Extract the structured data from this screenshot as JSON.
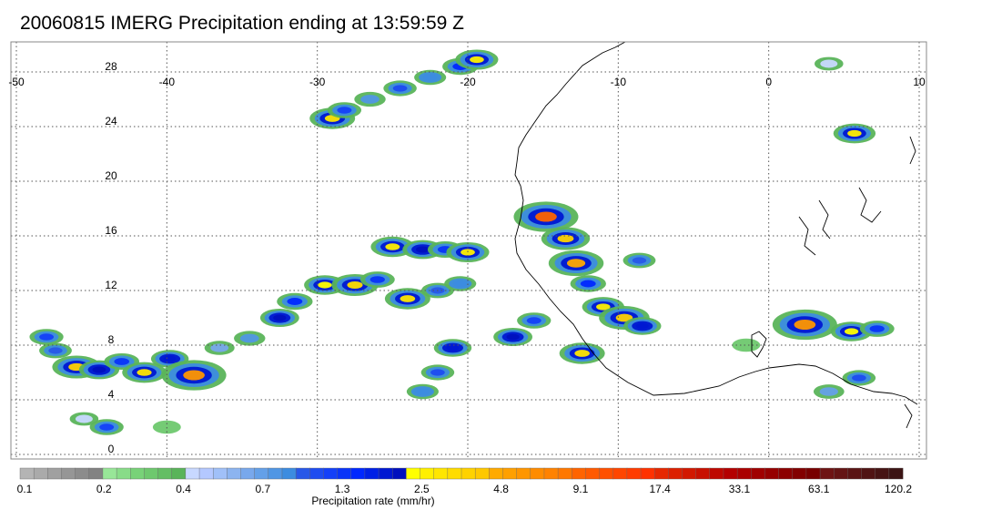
{
  "title": "20060815 IMERG Precipitation ending at 13:59:59 Z",
  "map": {
    "lon_range": [
      -50,
      10
    ],
    "lat_range": [
      -1,
      30
    ],
    "lon_ticks": [
      "-50",
      "-40",
      "-30",
      "-20",
      "-10",
      "0",
      "10"
    ],
    "lon_tick_values": [
      -50,
      -40,
      -30,
      -20,
      -10,
      0,
      10
    ],
    "lat_ticks": [
      "28",
      "24",
      "20",
      "16",
      "12",
      "8",
      "4",
      "0"
    ],
    "lat_tick_values": [
      28,
      24,
      20,
      16,
      12,
      8,
      4,
      0
    ],
    "grid": "dotted",
    "coastline_color": "#000000"
  },
  "colorbar": {
    "label": "Precipitation rate (mm/hr)",
    "tick_labels": [
      "0.1",
      "0.2",
      "0.4",
      "0.7",
      "1.3",
      "2.5",
      "4.8",
      "9.1",
      "17.4",
      "33.1",
      "63.1",
      "120.2"
    ],
    "colors": [
      "#b4b4b4",
      "#aaaaaa",
      "#a0a0a0",
      "#969696",
      "#8c8c8c",
      "#828282",
      "#98e698",
      "#88dc88",
      "#78d278",
      "#6ec86e",
      "#64be64",
      "#5ab45a",
      "#c8d8ff",
      "#b4c8ff",
      "#a0c0f8",
      "#8cb4f0",
      "#78a8ec",
      "#64a0e8",
      "#5096e4",
      "#3c8ce0",
      "#2858e8",
      "#1e4cf0",
      "#1440f8",
      "#0a34f8",
      "#0028ff",
      "#0020e6",
      "#0018d2",
      "#0010be",
      "#ffff00",
      "#fff000",
      "#ffe600",
      "#ffdc00",
      "#ffd200",
      "#ffc800",
      "#ffaa00",
      "#ffa000",
      "#ff9600",
      "#ff8c00",
      "#ff8200",
      "#ff7800",
      "#ff6400",
      "#ff5a00",
      "#ff5000",
      "#ff4600",
      "#ff3c00",
      "#ff3200",
      "#e62800",
      "#dc2000",
      "#d21800",
      "#c81000",
      "#be0800",
      "#b40000",
      "#aa0000",
      "#a00000",
      "#960000",
      "#8c0000",
      "#820000",
      "#780000",
      "#6e1414",
      "#641414",
      "#5a1414",
      "#501414",
      "#461414",
      "#3c1414"
    ]
  },
  "precip_cells": [
    {
      "lon": -29.0,
      "lat": 24.6,
      "rate": 3.0
    },
    {
      "lon": -28.2,
      "lat": 25.2,
      "rate": 1.2
    },
    {
      "lon": -26.5,
      "lat": 26.0,
      "rate": 0.8
    },
    {
      "lon": -24.5,
      "lat": 26.8,
      "rate": 1.1
    },
    {
      "lon": -22.5,
      "lat": 27.6,
      "rate": 0.9
    },
    {
      "lon": -20.5,
      "lat": 28.4,
      "rate": 1.5
    },
    {
      "lon": -19.4,
      "lat": 28.9,
      "rate": 2.6
    },
    {
      "lon": -48.0,
      "lat": 8.6,
      "rate": 1.2
    },
    {
      "lon": -47.4,
      "lat": 7.6,
      "rate": 1.0
    },
    {
      "lon": -46.0,
      "lat": 6.4,
      "rate": 3.5
    },
    {
      "lon": -44.5,
      "lat": 6.2,
      "rate": 2.2
    },
    {
      "lon": -43.0,
      "lat": 6.8,
      "rate": 1.4
    },
    {
      "lon": -41.5,
      "lat": 6.0,
      "rate": 2.8
    },
    {
      "lon": -39.8,
      "lat": 7.0,
      "rate": 1.8
    },
    {
      "lon": -38.2,
      "lat": 5.8,
      "rate": 6.0
    },
    {
      "lon": -36.5,
      "lat": 7.8,
      "rate": 0.6
    },
    {
      "lon": -34.5,
      "lat": 8.5,
      "rate": 0.8
    },
    {
      "lon": -32.5,
      "lat": 10.0,
      "rate": 2.0
    },
    {
      "lon": -31.5,
      "lat": 11.2,
      "rate": 1.5
    },
    {
      "lon": -29.5,
      "lat": 12.4,
      "rate": 2.4
    },
    {
      "lon": -27.5,
      "lat": 12.4,
      "rate": 3.2
    },
    {
      "lon": -26.0,
      "lat": 12.8,
      "rate": 1.3
    },
    {
      "lon": -24.0,
      "lat": 11.4,
      "rate": 3.0
    },
    {
      "lon": -22.0,
      "lat": 12.0,
      "rate": 1.0
    },
    {
      "lon": -20.5,
      "lat": 12.5,
      "rate": 0.9
    },
    {
      "lon": -25.0,
      "lat": 15.2,
      "rate": 2.7
    },
    {
      "lon": -23.0,
      "lat": 15.0,
      "rate": 2.2
    },
    {
      "lon": -21.5,
      "lat": 15.0,
      "rate": 1.4
    },
    {
      "lon": -20.0,
      "lat": 14.8,
      "rate": 2.6
    },
    {
      "lon": -21.0,
      "lat": 7.8,
      "rate": 1.8
    },
    {
      "lon": -22.0,
      "lat": 6.0,
      "rate": 1.1
    },
    {
      "lon": -23.0,
      "lat": 4.6,
      "rate": 0.9
    },
    {
      "lon": -44.0,
      "lat": 2.0,
      "rate": 1.2
    },
    {
      "lon": -14.8,
      "lat": 17.4,
      "rate": 9.0
    },
    {
      "lon": -13.5,
      "lat": 15.8,
      "rate": 3.5
    },
    {
      "lon": -12.8,
      "lat": 14.0,
      "rate": 4.5
    },
    {
      "lon": -12.0,
      "lat": 12.5,
      "rate": 1.5
    },
    {
      "lon": -11.0,
      "lat": 10.8,
      "rate": 2.5
    },
    {
      "lon": -9.6,
      "lat": 10.0,
      "rate": 3.8
    },
    {
      "lon": -8.4,
      "lat": 9.4,
      "rate": 1.8
    },
    {
      "lon": -12.4,
      "lat": 7.4,
      "rate": 3.0
    },
    {
      "lon": -15.6,
      "lat": 9.8,
      "rate": 1.2
    },
    {
      "lon": -17.0,
      "lat": 8.6,
      "rate": 2.0
    },
    {
      "lon": -8.6,
      "lat": 14.2,
      "rate": 1.0
    },
    {
      "lon": 2.4,
      "lat": 9.5,
      "rate": 6.0
    },
    {
      "lon": 5.5,
      "lat": 9.0,
      "rate": 2.4
    },
    {
      "lon": 7.2,
      "lat": 9.2,
      "rate": 1.3
    },
    {
      "lon": 6.0,
      "lat": 5.6,
      "rate": 1.1
    },
    {
      "lon": 5.7,
      "lat": 23.5,
      "rate": 2.5
    },
    {
      "lon": 4.0,
      "lat": 4.6,
      "rate": 0.7
    },
    {
      "lon": -1.5,
      "lat": 8.0,
      "rate": 0.3
    },
    {
      "lon": -45.5,
      "lat": 2.6,
      "rate": 0.4
    },
    {
      "lon": -40.0,
      "lat": 2.0,
      "rate": 0.3
    },
    {
      "lon": 4.0,
      "lat": 28.6,
      "rate": 0.4
    }
  ]
}
